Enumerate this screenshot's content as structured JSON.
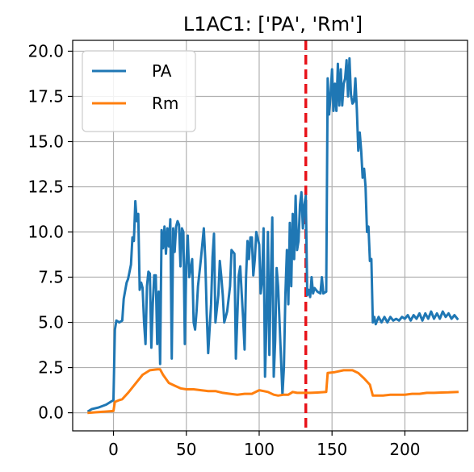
{
  "chart_data": {
    "type": "line",
    "title": "L1AC1: ['PA', 'Rm']",
    "xlabel": "",
    "ylabel": "",
    "xlim": [
      -28,
      243
    ],
    "ylim": [
      -1.0,
      20.6
    ],
    "x_ticks": [
      0,
      50,
      100,
      150,
      200
    ],
    "x_tick_labels": [
      "0",
      "50",
      "100",
      "150",
      "200"
    ],
    "y_ticks": [
      0.0,
      2.5,
      5.0,
      7.5,
      10.0,
      12.5,
      15.0,
      17.5,
      20.0
    ],
    "y_tick_labels": [
      "0.0",
      "2.5",
      "5.0",
      "7.5",
      "10.0",
      "12.5",
      "15.0",
      "17.5",
      "20.0"
    ],
    "grid": true,
    "legend": "top-left",
    "vline": {
      "x": 132,
      "color": "#e8141b",
      "style": "dashed"
    },
    "series": [
      {
        "name": "PA",
        "color": "#1f77b4",
        "points": [
          [
            -17,
            0.1
          ],
          [
            -15,
            0.2
          ],
          [
            -10,
            0.3
          ],
          [
            -5,
            0.45
          ],
          [
            0,
            0.7
          ],
          [
            1,
            4.6
          ],
          [
            2,
            5.1
          ],
          [
            4,
            5.0
          ],
          [
            6,
            5.1
          ],
          [
            7,
            6.3
          ],
          [
            9,
            7.2
          ],
          [
            10,
            7.4
          ],
          [
            12,
            8.2
          ],
          [
            13,
            9.7
          ],
          [
            14,
            9.5
          ],
          [
            15,
            11.7
          ],
          [
            16,
            10.6
          ],
          [
            17,
            11.0
          ],
          [
            18,
            6.8
          ],
          [
            19,
            7.2
          ],
          [
            20,
            6.9
          ],
          [
            21,
            5.0
          ],
          [
            22,
            3.8
          ],
          [
            23,
            7.0
          ],
          [
            24,
            7.8
          ],
          [
            25,
            7.7
          ],
          [
            26,
            3.6
          ],
          [
            27,
            6.0
          ],
          [
            28,
            7.6
          ],
          [
            29,
            7.6
          ],
          [
            30,
            3.8
          ],
          [
            31,
            6.7
          ],
          [
            32,
            2.7
          ],
          [
            33,
            10.1
          ],
          [
            34,
            9.1
          ],
          [
            35,
            10.3
          ],
          [
            36,
            8.8
          ],
          [
            37,
            10.2
          ],
          [
            38,
            9.2
          ],
          [
            39,
            10.7
          ],
          [
            40,
            3.0
          ],
          [
            41,
            10.2
          ],
          [
            42,
            8.9
          ],
          [
            43,
            10.3
          ],
          [
            44,
            10.6
          ],
          [
            45,
            10.4
          ],
          [
            46,
            8.1
          ],
          [
            47,
            10.2
          ],
          [
            48,
            10.0
          ],
          [
            49,
            3.8
          ],
          [
            50,
            8.2
          ],
          [
            51,
            9.8
          ],
          [
            52,
            7.5
          ],
          [
            54,
            8.5
          ],
          [
            55,
            5.0
          ],
          [
            56,
            4.6
          ],
          [
            57,
            5.6
          ],
          [
            58,
            7.0
          ],
          [
            60,
            8.5
          ],
          [
            62,
            10.2
          ],
          [
            63,
            8.5
          ],
          [
            64,
            5.5
          ],
          [
            65,
            3.3
          ],
          [
            67,
            6.0
          ],
          [
            68,
            8.6
          ],
          [
            69,
            9.9
          ],
          [
            70,
            5.0
          ],
          [
            72,
            6.5
          ],
          [
            73,
            8.4
          ],
          [
            74,
            7.5
          ],
          [
            75,
            6.5
          ],
          [
            76,
            5.0
          ],
          [
            78,
            5.6
          ],
          [
            80,
            7.0
          ],
          [
            81,
            9.0
          ],
          [
            83,
            8.8
          ],
          [
            84,
            3.0
          ],
          [
            86,
            7.6
          ],
          [
            87,
            8.1
          ],
          [
            88,
            6.6
          ],
          [
            89,
            5.2
          ],
          [
            90,
            3.5
          ],
          [
            91,
            7.5
          ],
          [
            92,
            9.5
          ],
          [
            93,
            8.5
          ],
          [
            94,
            9.7
          ],
          [
            95,
            9.7
          ],
          [
            96,
            7.6
          ],
          [
            97,
            8.5
          ],
          [
            98,
            10.0
          ],
          [
            100,
            9.3
          ],
          [
            101,
            6.6
          ],
          [
            102,
            7.3
          ],
          [
            103,
            10.2
          ],
          [
            104,
            2.0
          ],
          [
            105,
            5.0
          ],
          [
            106,
            10.0
          ],
          [
            107,
            3.2
          ],
          [
            108,
            7.4
          ],
          [
            109,
            10.8
          ],
          [
            110,
            2.0
          ],
          [
            111,
            4.0
          ],
          [
            112,
            8.0
          ],
          [
            113,
            7.0
          ],
          [
            114,
            5.0
          ],
          [
            115,
            3.0
          ],
          [
            116,
            1.0
          ],
          [
            117,
            2.5
          ],
          [
            118,
            6.5
          ],
          [
            119,
            9.0
          ],
          [
            120,
            6.0
          ],
          [
            121,
            10.5
          ],
          [
            122,
            7.0
          ],
          [
            123,
            11.0
          ],
          [
            124,
            8.5
          ],
          [
            125,
            12.0
          ],
          [
            126,
            9.0
          ],
          [
            127,
            9.5
          ],
          [
            128,
            11.5
          ],
          [
            129,
            12.2
          ],
          [
            130,
            10.2
          ],
          [
            131,
            11.5
          ],
          [
            132,
            12.0
          ],
          [
            133,
            6.5
          ],
          [
            134,
            6.8
          ],
          [
            135,
            6.4
          ],
          [
            136,
            7.5
          ],
          [
            137,
            6.6
          ],
          [
            138,
            6.9
          ],
          [
            140,
            6.7
          ],
          [
            142,
            6.6
          ],
          [
            143,
            7.5
          ],
          [
            144,
            6.6
          ],
          [
            146,
            6.7
          ],
          [
            147,
            18.5
          ],
          [
            148,
            16.5
          ],
          [
            149,
            17.6
          ],
          [
            150,
            19.0
          ],
          [
            151,
            16.7
          ],
          [
            152,
            18.2
          ],
          [
            153,
            16.7
          ],
          [
            154,
            19.3
          ],
          [
            155,
            17.0
          ],
          [
            156,
            19.0
          ],
          [
            157,
            17.0
          ],
          [
            158,
            18.2
          ],
          [
            159,
            18.5
          ],
          [
            160,
            19.5
          ],
          [
            161,
            17.5
          ],
          [
            162,
            19.6
          ],
          [
            163,
            17.6
          ],
          [
            164,
            17.1
          ],
          [
            165,
            17.2
          ],
          [
            166,
            18.5
          ],
          [
            167,
            16.8
          ],
          [
            168,
            14.5
          ],
          [
            169,
            15.5
          ],
          [
            170,
            14.5
          ],
          [
            171,
            13.0
          ],
          [
            172,
            13.5
          ],
          [
            173,
            12.5
          ],
          [
            174,
            10.0
          ],
          [
            175,
            10.3
          ],
          [
            176,
            8.4
          ],
          [
            177,
            8.5
          ],
          [
            178,
            5.0
          ],
          [
            179,
            5.3
          ],
          [
            180,
            4.9
          ],
          [
            182,
            5.3
          ],
          [
            184,
            5.0
          ],
          [
            186,
            5.3
          ],
          [
            188,
            5.0
          ],
          [
            190,
            5.3
          ],
          [
            192,
            5.1
          ],
          [
            194,
            5.2
          ],
          [
            196,
            5.1
          ],
          [
            198,
            5.3
          ],
          [
            200,
            5.2
          ],
          [
            202,
            5.4
          ],
          [
            204,
            5.1
          ],
          [
            206,
            5.4
          ],
          [
            208,
            5.2
          ],
          [
            210,
            5.5
          ],
          [
            212,
            5.1
          ],
          [
            214,
            5.5
          ],
          [
            216,
            5.2
          ],
          [
            218,
            5.6
          ],
          [
            220,
            5.2
          ],
          [
            222,
            5.5
          ],
          [
            224,
            5.2
          ],
          [
            226,
            5.6
          ],
          [
            228,
            5.3
          ],
          [
            230,
            5.5
          ],
          [
            232,
            5.2
          ],
          [
            234,
            5.4
          ],
          [
            236,
            5.2
          ]
        ]
      },
      {
        "name": "Rm",
        "color": "#ff7f0e",
        "points": [
          [
            -17,
            0.0
          ],
          [
            0,
            0.1
          ],
          [
            1,
            0.6
          ],
          [
            4,
            0.7
          ],
          [
            6,
            0.75
          ],
          [
            10,
            1.1
          ],
          [
            15,
            1.6
          ],
          [
            20,
            2.1
          ],
          [
            25,
            2.35
          ],
          [
            30,
            2.4
          ],
          [
            32,
            2.4
          ],
          [
            34,
            2.1
          ],
          [
            38,
            1.65
          ],
          [
            42,
            1.5
          ],
          [
            46,
            1.35
          ],
          [
            50,
            1.3
          ],
          [
            55,
            1.3
          ],
          [
            60,
            1.25
          ],
          [
            65,
            1.2
          ],
          [
            70,
            1.2
          ],
          [
            75,
            1.1
          ],
          [
            80,
            1.05
          ],
          [
            85,
            1.0
          ],
          [
            90,
            1.05
          ],
          [
            95,
            1.05
          ],
          [
            100,
            1.25
          ],
          [
            103,
            1.2
          ],
          [
            106,
            1.15
          ],
          [
            110,
            1.0
          ],
          [
            113,
            0.95
          ],
          [
            117,
            1.0
          ],
          [
            120,
            1.0
          ],
          [
            123,
            1.15
          ],
          [
            126,
            1.1
          ],
          [
            130,
            1.1
          ],
          [
            135,
            1.1
          ],
          [
            140,
            1.12
          ],
          [
            146,
            1.15
          ],
          [
            147,
            2.2
          ],
          [
            152,
            2.25
          ],
          [
            158,
            2.35
          ],
          [
            164,
            2.35
          ],
          [
            168,
            2.2
          ],
          [
            172,
            1.9
          ],
          [
            176,
            1.55
          ],
          [
            178,
            0.95
          ],
          [
            185,
            0.95
          ],
          [
            190,
            1.0
          ],
          [
            195,
            1.0
          ],
          [
            200,
            1.0
          ],
          [
            205,
            1.05
          ],
          [
            210,
            1.05
          ],
          [
            215,
            1.1
          ],
          [
            220,
            1.1
          ],
          [
            225,
            1.12
          ],
          [
            230,
            1.13
          ],
          [
            236,
            1.15
          ]
        ]
      }
    ]
  }
}
